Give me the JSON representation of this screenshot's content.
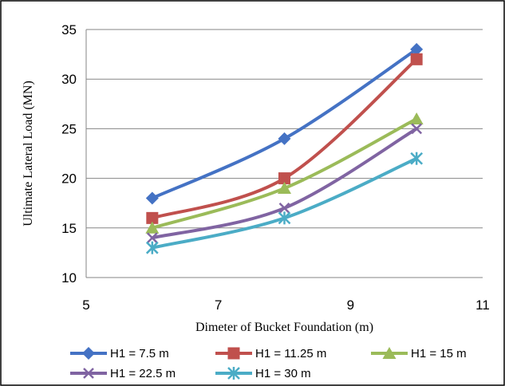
{
  "chart_data": {
    "type": "line",
    "title": "",
    "xlabel": "Dimeter of Bucket Foundation (m)",
    "ylabel": "Ultimate Lateral Load (MN)",
    "xlim": [
      5,
      11
    ],
    "ylim": [
      10,
      35
    ],
    "xticks": [
      5,
      7,
      9,
      11
    ],
    "yticks": [
      10,
      15,
      20,
      25,
      30,
      35
    ],
    "grid": "horizontal",
    "legend_position": "bottom",
    "x": [
      6,
      8,
      10
    ],
    "series": [
      {
        "name": "H1 = 7.5 m",
        "values": [
          18,
          24,
          33
        ],
        "color": "#4472C4",
        "marker": "diamond"
      },
      {
        "name": "H1 = 11.25 m",
        "values": [
          16,
          20,
          32
        ],
        "color": "#C0504D",
        "marker": "square"
      },
      {
        "name": "H1 = 15 m",
        "values": [
          15,
          19,
          26
        ],
        "color": "#9BBB59",
        "marker": "triangle"
      },
      {
        "name": "H1 = 22.5 m",
        "values": [
          14,
          17,
          25
        ],
        "color": "#8064A2",
        "marker": "x"
      },
      {
        "name": "H1 = 30 m",
        "values": [
          13,
          16,
          22
        ],
        "color": "#4BACC6",
        "marker": "star"
      }
    ]
  }
}
